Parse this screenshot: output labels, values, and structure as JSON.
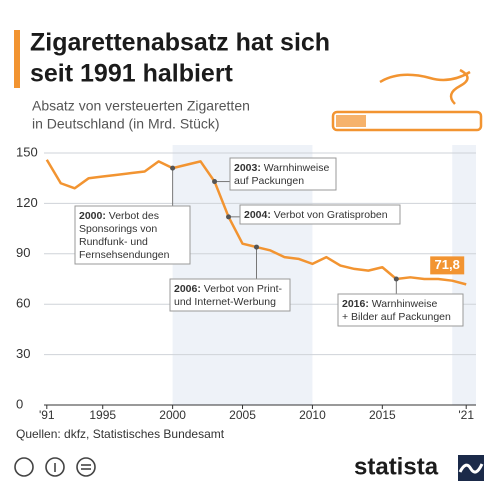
{
  "chart_data": {
    "type": "line",
    "title": [
      "Zigarettenabsatz hat sich",
      "seit 1991 halbiert"
    ],
    "subtitle": [
      "Absatz von versteuerten Zigaretten",
      "in Deutschland (in Mrd. Stück)"
    ],
    "x": [
      1991,
      1992,
      1993,
      1994,
      1995,
      1996,
      1997,
      1998,
      1999,
      2000,
      2001,
      2002,
      2003,
      2004,
      2005,
      2006,
      2007,
      2008,
      2009,
      2010,
      2011,
      2012,
      2013,
      2014,
      2015,
      2016,
      2017,
      2018,
      2019,
      2020,
      2021
    ],
    "values": [
      146,
      132,
      129,
      135,
      136,
      137,
      138,
      139,
      145,
      141,
      143,
      145,
      133,
      112,
      96,
      94,
      92,
      88,
      87,
      84,
      88,
      83,
      81,
      80,
      82,
      75,
      76,
      75,
      75,
      74,
      71.8
    ],
    "value_labels": [
      null,
      null,
      null,
      null,
      null,
      null,
      null,
      null,
      null,
      null,
      null,
      null,
      null,
      null,
      null,
      null,
      null,
      null,
      null,
      null,
      null,
      null,
      null,
      null,
      null,
      null,
      null,
      null,
      null,
      null,
      "71,8"
    ],
    "color": "#f29431",
    "xlim": [
      1990.8,
      2021.7
    ],
    "xticks": [
      {
        "value": 1991,
        "label": "'91"
      },
      1995,
      2000,
      2005,
      2010,
      2015,
      {
        "value": 2021,
        "label": "'21"
      }
    ],
    "ylim": [
      0,
      150
    ],
    "yticks": [
      0,
      30,
      60,
      90,
      120,
      150
    ],
    "grid": true,
    "shaded_ranges": [
      [
        2000,
        2010
      ],
      [
        2020,
        2021.7
      ]
    ],
    "annotations": [
      {
        "x": 2000,
        "label": "2000:",
        "lines": [
          "Verbot des",
          "Sponsorings von",
          "Rundfunk- und",
          "Fernsehsendungen"
        ]
      },
      {
        "x": 2003,
        "label": "2003:",
        "lines": [
          "Warnhinweise",
          "auf Packungen"
        ]
      },
      {
        "x": 2004,
        "label": "2004:",
        "lines": [
          "Verbot von Gratisproben"
        ]
      },
      {
        "x": 2006,
        "label": "2006:",
        "lines": [
          "Verbot von Print-",
          "und Internet-Werbung"
        ]
      },
      {
        "x": 2016,
        "label": "2016:",
        "lines": [
          "Warnhinweise",
          "+ Bilder auf Packungen"
        ]
      }
    ],
    "source": "Quellen: dkfz, Statistisches Bundesamt",
    "logo": "statista"
  }
}
